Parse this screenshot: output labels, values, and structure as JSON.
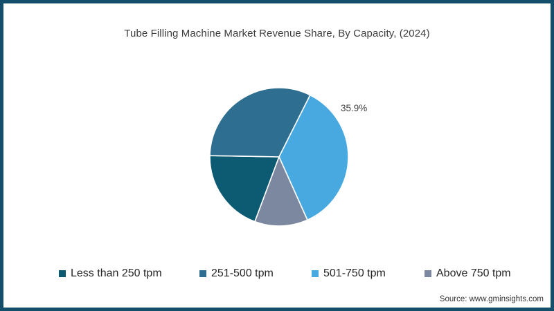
{
  "title": "Tube Filling Machine Market Revenue Share, By Capacity, (2024)",
  "source": "Source: www.gminsights.com",
  "frame_color": "#134f6b",
  "chart_data": {
    "type": "pie",
    "title": "Tube Filling Machine Market Revenue Share, By Capacity, (2024)",
    "legend_position": "bottom",
    "start_angle_deg": 200.5,
    "slices": [
      {
        "label": "Less than 250 tpm",
        "value": 19.6,
        "color": "#0c5b72"
      },
      {
        "label": "251-500 tpm",
        "value": 32.1,
        "color": "#2e6f91"
      },
      {
        "label": "501-750 tpm",
        "value": 35.9,
        "color": "#48a9e0"
      },
      {
        "label": "Above 750 tpm",
        "value": 12.4,
        "color": "#7b88a0"
      }
    ],
    "annotation": {
      "text": "35.9%",
      "slice": "501-750 tpm"
    },
    "separator_color": "#ffffff"
  }
}
